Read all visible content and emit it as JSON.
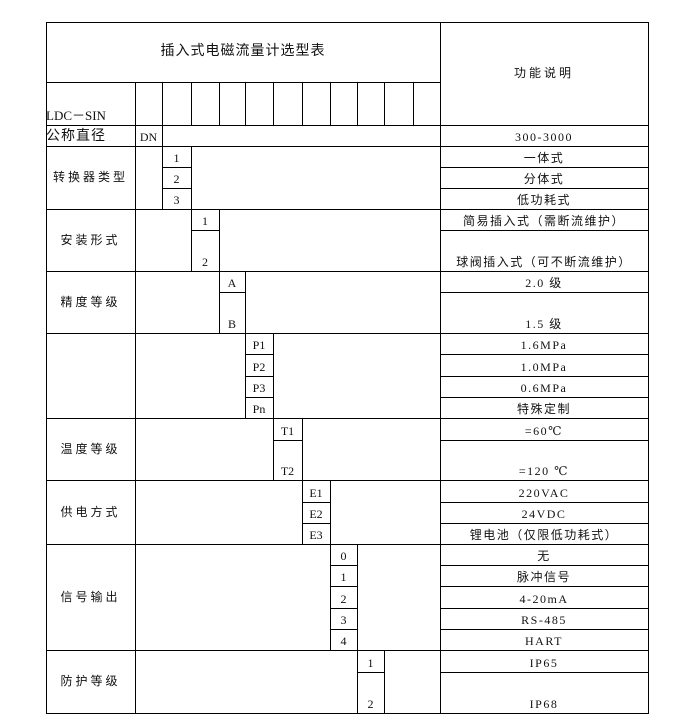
{
  "title": "插入式电磁流量计选型表",
  "model_prefix": "LDC－SIN",
  "description_header": "功能说明",
  "groups": [
    {
      "label": "公称直径",
      "options": [
        {
          "code": "DN",
          "desc": "300-3000"
        }
      ]
    },
    {
      "label": "转换器类型",
      "options": [
        {
          "code": "1",
          "desc": "一体式"
        },
        {
          "code": "2",
          "desc": "分体式"
        },
        {
          "code": "3",
          "desc": "低功耗式"
        }
      ]
    },
    {
      "label": "安装形式",
      "options": [
        {
          "code": "1",
          "desc": "简易插入式（需断流维护）"
        },
        {
          "code": "2",
          "desc": "球阀插入式（可不断流维护）"
        }
      ]
    },
    {
      "label": "精度等级",
      "options": [
        {
          "code": "A",
          "desc": "2.0 级"
        },
        {
          "code": "B",
          "desc": "1.5 级"
        }
      ]
    },
    {
      "label": "",
      "options": [
        {
          "code": "P1",
          "desc": "1.6MPa"
        },
        {
          "code": "P2",
          "desc": "1.0MPa"
        },
        {
          "code": "P3",
          "desc": "0.6MPa"
        },
        {
          "code": "Pn",
          "desc": "特殊定制"
        }
      ]
    },
    {
      "label": "温度等级",
      "options": [
        {
          "code": "T1",
          "desc": "=60℃"
        },
        {
          "code": "T2",
          "desc": "=120 ℃"
        }
      ]
    },
    {
      "label": "供电方式",
      "options": [
        {
          "code": "E1",
          "desc": "220VAC"
        },
        {
          "code": "E2",
          "desc": "24VDC"
        },
        {
          "code": "E3",
          "desc": "锂电池（仅限低功耗式）"
        }
      ]
    },
    {
      "label": "信号输出",
      "options": [
        {
          "code": "0",
          "desc": "无"
        },
        {
          "code": "1",
          "desc": "脉冲信号"
        },
        {
          "code": "2",
          "desc": "4-20mA"
        },
        {
          "code": "3",
          "desc": "RS-485"
        },
        {
          "code": "4",
          "desc": "HART"
        }
      ]
    },
    {
      "label": "防护等级",
      "options": [
        {
          "code": "1",
          "desc": "IP65"
        },
        {
          "code": "2",
          "desc": "IP68"
        }
      ]
    }
  ]
}
